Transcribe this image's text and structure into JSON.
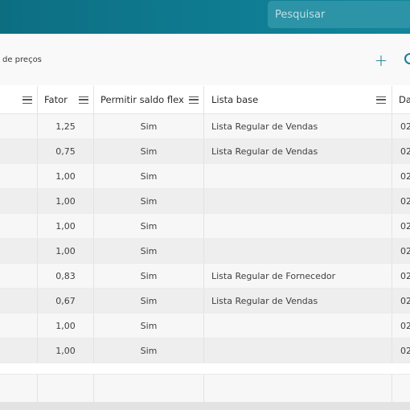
{
  "search": {
    "placeholder": "Pesquisar"
  },
  "toolbar": {
    "subtitle": "de preços",
    "add_label": "+"
  },
  "table": {
    "headers": {
      "fator": "Fator",
      "permitir": "Permitir saldo flex",
      "lista_base": "Lista base",
      "data": "Da"
    },
    "rows": [
      {
        "fator": "1,25",
        "permitir": "Sim",
        "lista_base": "Lista Regular de Vendas",
        "data": "02"
      },
      {
        "fator": "0,75",
        "permitir": "Sim",
        "lista_base": "Lista Regular de Vendas",
        "data": "02"
      },
      {
        "fator": "1,00",
        "permitir": "Sim",
        "lista_base": "",
        "data": "02"
      },
      {
        "fator": "1,00",
        "permitir": "Sim",
        "lista_base": "",
        "data": "02"
      },
      {
        "fator": "1,00",
        "permitir": "Sim",
        "lista_base": "",
        "data": "02"
      },
      {
        "fator": "1,00",
        "permitir": "Sim",
        "lista_base": "",
        "data": "02"
      },
      {
        "fator": "0,83",
        "permitir": "Sim",
        "lista_base": "Lista Regular de Fornecedor",
        "data": "02"
      },
      {
        "fator": "0,67",
        "permitir": "Sim",
        "lista_base": "Lista Regular de Vendas",
        "data": "02"
      },
      {
        "fator": "1,00",
        "permitir": "Sim",
        "lista_base": "",
        "data": "02"
      },
      {
        "fator": "1,00",
        "permitir": "Sim",
        "lista_base": "",
        "data": "02"
      }
    ]
  },
  "icons": {
    "add": "plus-icon",
    "search": "search-icon",
    "column_menu": "menu-icon"
  },
  "colors": {
    "header_bar": "#0f7d93",
    "accent": "#167e91"
  }
}
